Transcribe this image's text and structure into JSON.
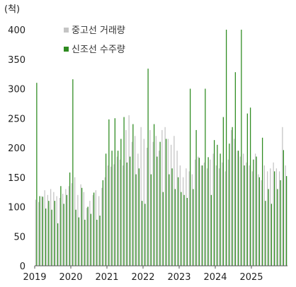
{
  "chart_data": {
    "type": "bar",
    "unit_label": "(척)",
    "ylim": [
      0,
      400
    ],
    "y_ticks": [
      0,
      50,
      100,
      150,
      200,
      250,
      300,
      350,
      400
    ],
    "x_tick_labels": [
      "2019",
      "2020",
      "2021",
      "2022",
      "2023",
      "2024",
      "2025"
    ],
    "grid": false,
    "legend_placement": "top-left",
    "x_start": "2019-01",
    "series": [
      {
        "name": "중고선 거래량",
        "color": "#c4c4c4",
        "values": [
          112,
          108,
          118,
          128,
          120,
          130,
          125,
          118,
          115,
          122,
          130,
          135,
          140,
          150,
          120,
          138,
          125,
          98,
          110,
          120,
          128,
          118,
          132,
          150,
          170,
          168,
          172,
          185,
          180,
          170,
          230,
          255,
          210,
          220,
          190,
          235,
          215,
          200,
          230,
          210,
          220,
          195,
          230,
          235,
          215,
          205,
          220,
          195,
          170,
          150,
          165,
          160,
          155,
          180,
          185,
          170,
          175,
          165,
          180,
          190,
          170,
          165,
          175,
          160,
          180,
          230,
          215,
          195,
          185,
          190,
          175,
          170,
          160,
          190,
          155,
          145,
          170,
          160,
          165,
          175,
          165,
          160,
          235,
          170
        ]
      },
      {
        "name": "신조선 수주량",
        "color": "#2e8b20",
        "values": [
          310,
          118,
          117,
          97,
          110,
          95,
          110,
          72,
          135,
          105,
          120,
          158,
          316,
          95,
          82,
          132,
          78,
          100,
          88,
          124,
          78,
          85,
          145,
          190,
          248,
          195,
          250,
          195,
          215,
          252,
          175,
          185,
          240,
          155,
          165,
          110,
          105,
          334,
          155,
          240,
          185,
          210,
          125,
          215,
          155,
          165,
          130,
          150,
          125,
          120,
          115,
          300,
          130,
          230,
          183,
          170,
          300,
          184,
          120,
          213,
          205,
          190,
          252,
          400,
          207,
          235,
          328,
          195,
          400,
          170,
          258,
          268,
          180,
          185,
          150,
          217,
          110,
          130,
          105,
          160,
          130,
          145,
          196,
          152
        ]
      }
    ]
  }
}
